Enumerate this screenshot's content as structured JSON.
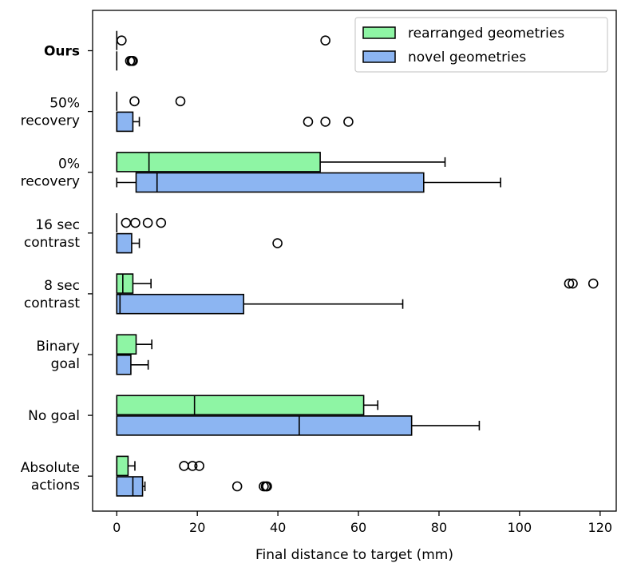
{
  "chart_data": {
    "type": "boxplot",
    "orientation": "horizontal",
    "xlabel": "Final distance to target (mm)",
    "xlim": [
      -6,
      124
    ],
    "xticks": [
      0,
      20,
      40,
      60,
      80,
      100,
      120
    ],
    "legend": {
      "placement": "top-right",
      "entries": [
        {
          "label": "rearranged geometries",
          "color": "#8ef5a4"
        },
        {
          "label": "novel geometries",
          "color": "#8cb5f2"
        }
      ]
    },
    "categories": [
      {
        "lines": [
          "Ours"
        ],
        "bold": true
      },
      {
        "lines": [
          "50%",
          "recovery"
        ]
      },
      {
        "lines": [
          "0%",
          "recovery"
        ]
      },
      {
        "lines": [
          "16 sec",
          "contrast"
        ]
      },
      {
        "lines": [
          "8 sec",
          "contrast"
        ]
      },
      {
        "lines": [
          "Binary",
          "goal"
        ]
      },
      {
        "lines": [
          "No goal"
        ]
      },
      {
        "lines": [
          "Absolute",
          "actions"
        ]
      }
    ],
    "series": [
      {
        "name": "rearranged geometries",
        "color": "#8ef5a4",
        "boxes": [
          {
            "whislo": 0,
            "q1": 0,
            "med": 0,
            "q3": 0,
            "whishi": 0,
            "fliers": [
              1.2,
              51.8
            ]
          },
          {
            "whislo": 0,
            "q1": 0,
            "med": 0,
            "q3": 0,
            "whishi": 0,
            "fliers": [
              4.4,
              15.8
            ]
          },
          {
            "whislo": 0,
            "q1": 0,
            "med": 8,
            "q3": 50.5,
            "whishi": 81.5,
            "fliers": []
          },
          {
            "whislo": 0,
            "q1": 0,
            "med": 0,
            "q3": 0,
            "whishi": 0,
            "fliers": [
              2.3,
              4.6,
              7.7,
              11
            ]
          },
          {
            "whislo": 0,
            "q1": 0,
            "med": 1.5,
            "q3": 4,
            "whishi": 8.5,
            "fliers": [
              112.3,
              113.2,
              118.3
            ]
          },
          {
            "whislo": 0,
            "q1": 0,
            "med": 0,
            "q3": 4.8,
            "whishi": 8.7,
            "fliers": []
          },
          {
            "whislo": 0,
            "q1": 0,
            "med": 19.3,
            "q3": 61.3,
            "whishi": 64.8,
            "fliers": []
          },
          {
            "whislo": 0,
            "q1": 0,
            "med": 0,
            "q3": 2.8,
            "whishi": 4.5,
            "fliers": [
              16.7,
              18.8,
              20.5
            ]
          }
        ]
      },
      {
        "name": "novel geometries",
        "color": "#8cb5f2",
        "boxes": [
          {
            "whislo": 0,
            "q1": 0,
            "med": 0,
            "q3": 0,
            "whishi": 0,
            "fliers": [
              3.3,
              3.7,
              4.0
            ]
          },
          {
            "whislo": 0,
            "q1": 0,
            "med": 0,
            "q3": 4,
            "whishi": 5.6,
            "fliers": [
              47.5,
              51.8,
              57.5
            ]
          },
          {
            "whislo": 0,
            "q1": 4.8,
            "med": 10,
            "q3": 76.2,
            "whishi": 95.3,
            "fliers": []
          },
          {
            "whislo": 0,
            "q1": 0,
            "med": 0,
            "q3": 3.7,
            "whishi": 5.6,
            "fliers": [
              39.9
            ]
          },
          {
            "whislo": 0,
            "q1": 0,
            "med": 0.8,
            "q3": 31.5,
            "whishi": 71,
            "fliers": []
          },
          {
            "whislo": 0,
            "q1": 0,
            "med": 0,
            "q3": 3.5,
            "whishi": 7.8,
            "fliers": []
          },
          {
            "whislo": 0,
            "q1": 0,
            "med": 45.3,
            "q3": 73.2,
            "whishi": 90,
            "fliers": []
          },
          {
            "whislo": 0,
            "q1": 0,
            "med": 4,
            "q3": 6.4,
            "whishi": 7,
            "fliers": [
              29.9,
              36.5,
              37,
              37.3
            ]
          }
        ]
      }
    ]
  }
}
